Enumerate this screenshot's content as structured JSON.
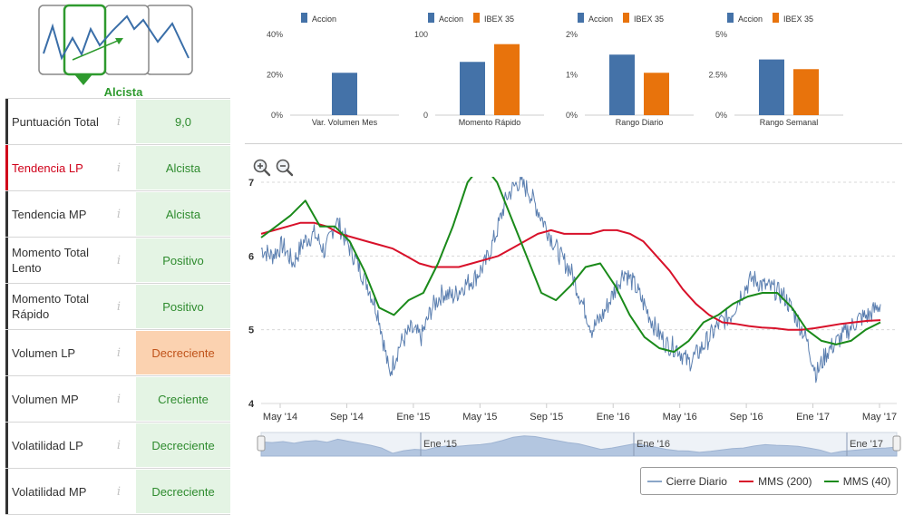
{
  "trend_selector": {
    "selected_label": "Alcista",
    "cards": [
      "tendencia-bajista",
      "tendencia-alcista",
      "tendencia-lateral",
      "tendencia-bajista-2"
    ]
  },
  "indicators": [
    {
      "name": "Puntuación Total",
      "value": "9,0",
      "status": "green",
      "highlight": false
    },
    {
      "name": "Tendencia LP",
      "value": "Alcista",
      "status": "green",
      "highlight": true
    },
    {
      "name": "Tendencia MP",
      "value": "Alcista",
      "status": "green",
      "highlight": false
    },
    {
      "name": "Momento Total Lento",
      "value": "Positivo",
      "status": "green",
      "highlight": false
    },
    {
      "name": "Momento Total Rápido",
      "value": "Positivo",
      "status": "green",
      "highlight": false
    },
    {
      "name": "Volumen LP",
      "value": "Decreciente",
      "status": "orange",
      "highlight": false
    },
    {
      "name": "Volumen MP",
      "value": "Creciente",
      "status": "green",
      "highlight": false
    },
    {
      "name": "Volatilidad LP",
      "value": "Decreciente",
      "status": "green",
      "highlight": false
    },
    {
      "name": "Volatilidad MP",
      "value": "Decreciente",
      "status": "green",
      "highlight": false
    }
  ],
  "info_icon_glyph": "i",
  "colors": {
    "accion": "#4472a8",
    "ibex": "#e8730c",
    "green_line": "#1a8a1a",
    "red_line": "#d8112a",
    "daily_line": "#5b7fb0"
  },
  "chart_data": [
    {
      "type": "bar",
      "title": "Var. Volumen Mes",
      "series": [
        {
          "name": "Accion",
          "values": [
            21
          ]
        }
      ],
      "ylim": [
        0,
        40
      ],
      "yticks": [
        "0%",
        "20%",
        "40%"
      ]
    },
    {
      "type": "bar",
      "title": "Momento Rápido",
      "series": [
        {
          "name": "Accion",
          "values": [
            66
          ]
        },
        {
          "name": "IBEX 35",
          "values": [
            88
          ]
        }
      ],
      "ylim": [
        0,
        100
      ],
      "yticks": [
        "0",
        "100"
      ]
    },
    {
      "type": "bar",
      "title": "Rango Diario",
      "series": [
        {
          "name": "Accion",
          "values": [
            1.5
          ]
        },
        {
          "name": "IBEX 35",
          "values": [
            1.05
          ]
        }
      ],
      "ylim": [
        0,
        2
      ],
      "yticks": [
        "0%",
        "1%",
        "2%"
      ]
    },
    {
      "type": "bar",
      "title": "Rango Semanal",
      "series": [
        {
          "name": "Accion",
          "values": [
            3.45
          ]
        },
        {
          "name": "IBEX 35",
          "values": [
            2.85
          ]
        }
      ],
      "ylim": [
        0,
        5
      ],
      "yticks": [
        "0%",
        "2.5%",
        "5%"
      ]
    },
    {
      "type": "line",
      "title": "",
      "ylim": [
        4,
        7
      ],
      "yticks": [
        "4",
        "5",
        "6",
        "7"
      ],
      "xticks": [
        "May '14",
        "Sep '14",
        "Ene '15",
        "May '15",
        "Sep '15",
        "Ene '16",
        "May '16",
        "Sep '16",
        "Ene '17",
        "May '17"
      ],
      "navigator_labels": [
        "Ene '15",
        "Ene '16",
        "Ene '17"
      ],
      "series": [
        {
          "name": "Cierre Diario",
          "values": [
            6.1,
            6.0,
            6.15,
            5.9,
            6.2,
            6.3,
            6.05,
            6.5,
            6.2,
            5.9,
            5.6,
            5.2,
            4.4,
            4.8,
            5.0,
            4.9,
            5.3,
            5.5,
            5.45,
            5.6,
            5.7,
            5.9,
            6.3,
            6.8,
            7.0,
            6.9,
            6.6,
            6.3,
            6.0,
            5.8,
            5.4,
            5.0,
            5.2,
            5.5,
            5.8,
            5.6,
            5.3,
            5.0,
            4.8,
            4.75,
            4.55,
            4.7,
            4.9,
            5.1,
            5.2,
            5.5,
            5.7,
            5.6,
            5.55,
            5.45,
            5.2,
            4.9,
            4.4,
            4.7,
            4.85,
            5.0,
            5.15,
            5.2,
            5.35
          ]
        },
        {
          "name": "MMS (200)",
          "values": [
            6.3,
            6.35,
            6.4,
            6.45,
            6.45,
            6.4,
            6.3,
            6.25,
            6.2,
            6.15,
            6.1,
            6.0,
            5.9,
            5.85,
            5.85,
            5.85,
            5.9,
            5.95,
            6.0,
            6.1,
            6.2,
            6.3,
            6.35,
            6.3,
            6.3,
            6.3,
            6.35,
            6.35,
            6.3,
            6.2,
            6.0,
            5.8,
            5.55,
            5.35,
            5.2,
            5.1,
            5.08,
            5.05,
            5.03,
            5.02,
            5.0,
            5.0,
            5.02,
            5.05,
            5.08,
            5.1,
            5.12,
            5.13
          ]
        },
        {
          "name": "MMS (40)",
          "values": [
            6.25,
            6.4,
            6.55,
            6.75,
            6.4,
            6.4,
            6.2,
            5.8,
            5.3,
            5.2,
            5.4,
            5.5,
            5.9,
            6.4,
            7.0,
            7.25,
            7.0,
            6.5,
            6.0,
            5.5,
            5.4,
            5.6,
            5.85,
            5.9,
            5.6,
            5.2,
            4.9,
            4.75,
            4.7,
            4.85,
            5.1,
            5.2,
            5.35,
            5.45,
            5.5,
            5.5,
            5.3,
            5.0,
            4.85,
            4.8,
            4.85,
            5.0,
            5.1
          ]
        }
      ]
    }
  ],
  "mini_charts": [
    {
      "title": "Var. Volumen Mes",
      "legend": [
        "Accion"
      ],
      "yticks": [
        "40%",
        "20%",
        "0%"
      ]
    },
    {
      "title": "Momento Rápido",
      "legend": [
        "Accion",
        "IBEX 35"
      ],
      "yticks": [
        "100",
        "0"
      ]
    },
    {
      "title": "Rango Diario",
      "legend": [
        "Accion",
        "IBEX 35"
      ],
      "yticks": [
        "2%",
        "1%",
        "0%"
      ]
    },
    {
      "title": "Rango Semanal",
      "legend": [
        "Accion",
        "IBEX 35"
      ],
      "yticks": [
        "5%",
        "2.5%",
        "0%"
      ]
    }
  ],
  "legend": {
    "daily": "Cierre Diario",
    "mms200": "MMS (200)",
    "mms40": "MMS (40)"
  }
}
